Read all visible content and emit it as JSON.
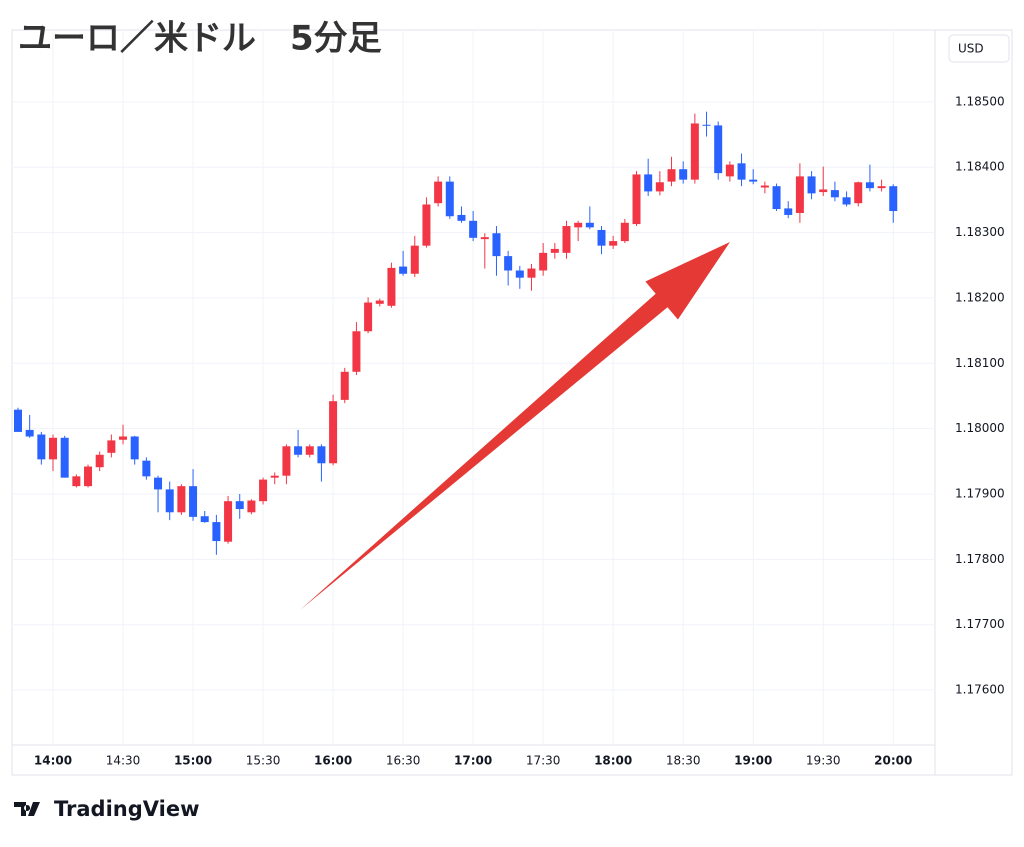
{
  "chart_data": {
    "type": "candlestick",
    "title": "ユーロ／米ドル　5分足",
    "axis_unit": "USD",
    "watermark": "TradingView",
    "up_color": "#f23645",
    "down_color": "#2962ff",
    "grid": true,
    "categories": [
      null,
      null,
      null,
      "14:00",
      null,
      null,
      null,
      null,
      null,
      "14:30",
      null,
      null,
      null,
      null,
      null,
      "15:00",
      null,
      null,
      null,
      null,
      null,
      "15:30",
      null,
      null,
      null,
      null,
      null,
      "16:00",
      null,
      null,
      null,
      null,
      null,
      "16:30",
      null,
      null,
      null,
      null,
      null,
      "17:00",
      null,
      null,
      null,
      null,
      null,
      "17:30",
      null,
      null,
      null,
      null,
      null,
      "18:00",
      null,
      null,
      null,
      null,
      null,
      "18:30",
      null,
      null,
      null,
      null,
      null,
      "19:00",
      null,
      null,
      null,
      null,
      null,
      "19:30",
      null,
      null,
      null,
      null,
      null,
      "20:00"
    ],
    "open": [
      1.18029,
      1.17998,
      1.17991,
      1.17953,
      1.17986,
      1.17912,
      1.17912,
      1.17941,
      1.17963,
      1.17983,
      1.17988,
      1.17951,
      1.17925,
      1.17907,
      1.17872,
      1.17912,
      1.17866,
      1.17857,
      1.17827,
      1.17889,
      1.17872,
      1.17889,
      1.17925,
      1.17928,
      1.17973,
      1.1796,
      1.17973,
      1.17947,
      1.18044,
      1.18087,
      1.18149,
      1.18191,
      1.18188,
      1.18248,
      1.18237,
      1.1828,
      1.18345,
      1.18378,
      1.18327,
      1.18318,
      1.1829,
      1.18299,
      1.18264,
      1.18242,
      1.18231,
      1.18242,
      1.18269,
      1.18269,
      1.18308,
      1.18315,
      1.18304,
      1.1828,
      1.18287,
      1.18313,
      1.18389,
      1.18363,
      1.18378,
      1.18397,
      1.18381,
      1.18465,
      1.18464,
      1.18386,
      1.18406,
      1.18381,
      1.18369,
      1.18371,
      1.18337,
      1.1833,
      1.18386,
      1.18362,
      1.18365,
      1.18354,
      1.18345,
      1.18377,
      1.18368,
      1.18371
    ],
    "high": [
      1.18032,
      1.18021,
      1.17995,
      1.17991,
      1.17989,
      1.1793,
      1.17945,
      1.17965,
      1.17991,
      1.18006,
      1.17989,
      1.17956,
      1.17928,
      1.17919,
      1.17915,
      1.17938,
      1.17874,
      1.17868,
      1.17897,
      1.179,
      1.17892,
      1.17925,
      1.17933,
      1.17976,
      1.17998,
      1.17976,
      1.17976,
      1.18052,
      1.18093,
      1.18163,
      1.18201,
      1.18199,
      1.18254,
      1.18272,
      1.18295,
      1.18354,
      1.18386,
      1.18386,
      1.1834,
      1.18333,
      1.18299,
      1.1831,
      1.18272,
      1.18249,
      1.18252,
      1.18284,
      1.18284,
      1.18318,
      1.18318,
      1.1834,
      1.1831,
      1.18295,
      1.18321,
      1.18394,
      1.18413,
      1.18394,
      1.18416,
      1.18409,
      1.18482,
      1.18485,
      1.1847,
      1.18409,
      1.18421,
      1.18397,
      1.18378,
      1.18375,
      1.18348,
      1.18406,
      1.18394,
      1.18401,
      1.18378,
      1.18363,
      1.18378,
      1.18404,
      1.18381,
      1.18374
    ],
    "low": [
      1.17995,
      1.17986,
      1.17945,
      1.17935,
      1.17925,
      1.1791,
      1.1791,
      1.17935,
      1.17956,
      1.17976,
      1.17945,
      1.17922,
      1.17872,
      1.1786,
      1.17868,
      1.17859,
      1.17856,
      1.17807,
      1.17824,
      1.17862,
      1.17869,
      1.17884,
      1.17915,
      1.17915,
      1.17956,
      1.17956,
      1.17919,
      1.17944,
      1.18039,
      1.18082,
      1.18146,
      1.18187,
      1.18185,
      1.18234,
      1.18232,
      1.18277,
      1.1834,
      1.18321,
      1.18315,
      1.18287,
      1.18245,
      1.18234,
      1.18219,
      1.18214,
      1.18211,
      1.18234,
      1.1826,
      1.1826,
      1.18287,
      1.18305,
      1.18267,
      1.18275,
      1.18284,
      1.1831,
      1.18356,
      1.18357,
      1.18371,
      1.18375,
      1.18375,
      1.18447,
      1.18381,
      1.18378,
      1.18371,
      1.18374,
      1.1836,
      1.18333,
      1.18322,
      1.18315,
      1.18351,
      1.18356,
      1.18348,
      1.1834,
      1.1834,
      1.18363,
      1.18363,
      1.18315
    ],
    "close": [
      1.17995,
      1.17988,
      1.17953,
      1.17986,
      1.17925,
      1.17927,
      1.17942,
      1.1796,
      1.17982,
      1.17988,
      1.17953,
      1.17927,
      1.17907,
      1.17872,
      1.17912,
      1.17865,
      1.17857,
      1.17828,
      1.17889,
      1.17877,
      1.1789,
      1.17922,
      1.17928,
      1.17973,
      1.1796,
      1.17973,
      1.17947,
      1.18042,
      1.18087,
      1.18149,
      1.18193,
      1.18196,
      1.18246,
      1.18237,
      1.1828,
      1.18343,
      1.18378,
      1.18325,
      1.18318,
      1.18292,
      1.18293,
      1.18264,
      1.18242,
      1.18231,
      1.18245,
      1.18269,
      1.18275,
      1.1831,
      1.18315,
      1.18308,
      1.1828,
      1.18287,
      1.18315,
      1.18389,
      1.18363,
      1.18377,
      1.18397,
      1.18381,
      1.18467,
      1.18464,
      1.18391,
      1.18404,
      1.18381,
      1.18378,
      1.18372,
      1.18336,
      1.18327,
      1.18386,
      1.1836,
      1.18366,
      1.18354,
      1.18343,
      1.18377,
      1.18368,
      1.18371,
      1.18333
    ],
    "ylim": [
      1.1747,
      1.1861
    ],
    "yticks": [
      {
        "value": 1.176,
        "label": "1.17600"
      },
      {
        "value": 1.177,
        "label": "1.17700"
      },
      {
        "value": 1.178,
        "label": "1.17800"
      },
      {
        "value": 1.179,
        "label": "1.17900"
      },
      {
        "value": 1.18,
        "label": "1.18000"
      },
      {
        "value": 1.181,
        "label": "1.18100"
      },
      {
        "value": 1.182,
        "label": "1.18200"
      },
      {
        "value": 1.183,
        "label": "1.18300"
      },
      {
        "value": 1.184,
        "label": "1.18400"
      },
      {
        "value": 1.185,
        "label": "1.18500"
      }
    ]
  }
}
